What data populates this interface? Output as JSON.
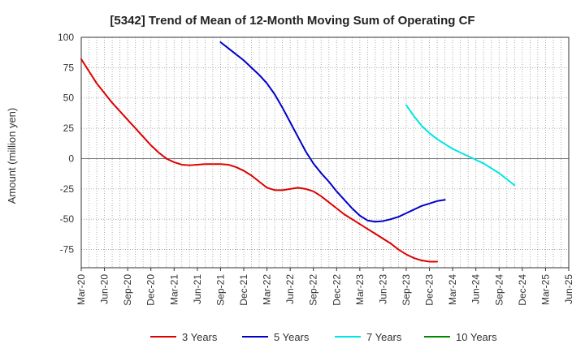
{
  "chart_data": {
    "type": "line",
    "title": "[5342]  Trend of Mean of 12-Month Moving Sum of Operating CF",
    "ylabel": "Amount (million yen)",
    "xlabel": "",
    "ylim": [
      -90,
      100
    ],
    "yticks": [
      100,
      75,
      50,
      25,
      0,
      -25,
      -50,
      -75
    ],
    "grid": true,
    "legend_position": "bottom",
    "x_tick_labels": [
      "Mar-20",
      "Jun-20",
      "Sep-20",
      "Dec-20",
      "Mar-21",
      "Jun-21",
      "Sep-21",
      "Dec-21",
      "Mar-22",
      "Jun-22",
      "Sep-22",
      "Dec-22",
      "Mar-23",
      "Jun-23",
      "Sep-23",
      "Dec-23",
      "Mar-24",
      "Jun-24",
      "Sep-24",
      "Dec-24",
      "Mar-25",
      "Jun-25"
    ],
    "series": [
      {
        "name": "3 Years",
        "color": "#dd0000",
        "start_index": 0,
        "values": [
          82,
          72,
          62,
          54,
          46,
          39,
          32,
          25,
          18,
          11,
          5,
          0,
          -3,
          -5,
          -5.5,
          -5,
          -4.5,
          -4.5,
          -4.5,
          -5,
          -7,
          -10,
          -14,
          -19,
          -24,
          -26,
          -26,
          -25,
          -24,
          -25,
          -27,
          -31,
          -36,
          -41,
          -46,
          -50,
          -54,
          -58,
          -62,
          -66,
          -70,
          -75,
          -79,
          -82,
          -84,
          -85,
          -85
        ]
      },
      {
        "name": "5 Years",
        "color": "#0000cc",
        "start_index": 18,
        "values": [
          96,
          91,
          86,
          81,
          75,
          69,
          62,
          53,
          42,
          30,
          18,
          6,
          -4,
          -12,
          -19,
          -27,
          -34,
          -41,
          -47,
          -51,
          -52,
          -51.5,
          -50,
          -48,
          -45,
          -42,
          -39,
          -37,
          -35,
          -34
        ]
      },
      {
        "name": "7 Years",
        "color": "#00e5e5",
        "start_index": 42,
        "values": [
          44,
          35,
          27,
          21,
          16,
          12,
          8,
          5,
          2,
          -1,
          -4,
          -8,
          -12,
          -17,
          -22
        ]
      },
      {
        "name": "10 Years",
        "color": "#008800",
        "start_index": 0,
        "values": []
      }
    ]
  }
}
